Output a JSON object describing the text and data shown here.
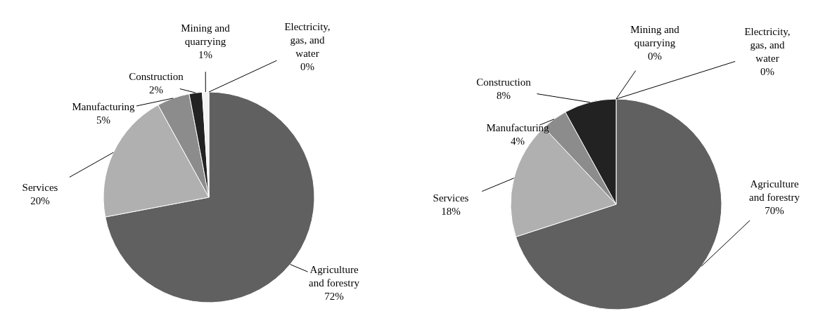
{
  "chart_data": [
    {
      "type": "pie",
      "categories": [
        "Agriculture and forestry",
        "Services",
        "Manufacturing",
        "Construction",
        "Mining and quarrying",
        "Electricity, gas, and water"
      ],
      "values": [
        72,
        20,
        5,
        2,
        1,
        0
      ],
      "value_labels": [
        "72%",
        "20%",
        "5%",
        "2%",
        "1%",
        "0%"
      ],
      "colors": [
        "#606060",
        "#b0b0b0",
        "#8c8c8c",
        "#222222",
        "#f2f2f2",
        "#cfcfcf"
      ]
    },
    {
      "type": "pie",
      "categories": [
        "Agriculture and forestry",
        "Services",
        "Manufacturing",
        "Construction",
        "Mining and quarrying",
        "Electricity, gas, and water"
      ],
      "values": [
        70,
        18,
        4,
        8,
        0,
        0
      ],
      "value_labels": [
        "70%",
        "18%",
        "4%",
        "8%",
        "0%",
        "0%"
      ],
      "colors": [
        "#606060",
        "#b0b0b0",
        "#8c8c8c",
        "#222222",
        "#f2f2f2",
        "#cfcfcf"
      ]
    }
  ]
}
